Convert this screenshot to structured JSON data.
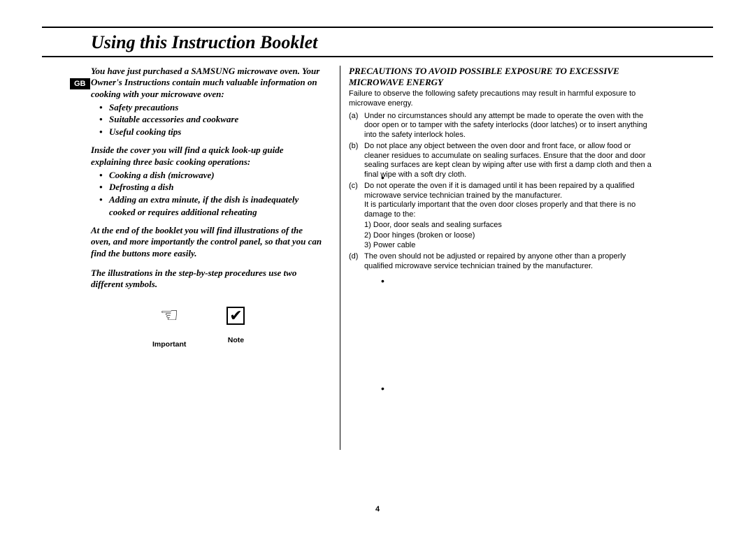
{
  "page": {
    "title": "Using this Instruction Booklet",
    "badge": "GB",
    "page_number": "4"
  },
  "left": {
    "intro": "You have just purchased a SAMSUNG microwave oven. Your Owner's Instructions contain much valuable information on cooking with your microwave oven:",
    "bullets1": [
      "Safety precautions",
      "Suitable accessories and cookware",
      "Useful cooking tips"
    ],
    "para2": "Inside the cover you will find a quick look-up guide explaining three basic cooking operations:",
    "bullets2": [
      "Cooking a dish (microwave)",
      "Defrosting a dish",
      "Adding an extra minute, if the dish is inadequately cooked or requires additional reheating"
    ],
    "para3": "At the end of the booklet you will find illustrations of the oven, and more importantly the control panel, so that you can find the buttons more easily.",
    "para4": "The illustrations in the step-by-step procedures use two different symbols.",
    "symbols": {
      "important_label": "Important",
      "note_label": "Note"
    }
  },
  "right": {
    "heading": "PRECAUTIONS TO AVOID POSSIBLE EXPOSURE TO EXCESSIVE MICROWAVE ENERGY",
    "sub": "Failure to observe the following safety precautions may result in harmful exposure to microwave energy.",
    "items": [
      {
        "letter": "(a)",
        "text": "Under no circumstances should any attempt be made to operate the oven with the door open or to tamper with the safety interlocks (door latches) or to insert anything into the safety interlock holes."
      },
      {
        "letter": "(b)",
        "text": "Do not place any object between the oven door and front face, or allow food or cleaner residues to accumulate on sealing surfaces. Ensure that the door and door sealing surfaces are kept clean by wiping after use with first a damp cloth and then a final wipe with a soft dry cloth."
      },
      {
        "letter": "(c)",
        "text": "Do not operate the oven if it is damaged until it has been repaired by a qualified microwave service technician trained by the manufacturer.",
        "extra": "It is particularly important that the oven door closes properly and that there is no damage to the:",
        "subs": [
          "1) Door, door seals and sealing surfaces",
          "2) Door hinges (broken or loose)",
          "3) Power cable"
        ]
      },
      {
        "letter": "(d)",
        "text": "The oven should not be adjusted or repaired by anyone other than a properly qualified microwave service technician trained by the manufacturer."
      }
    ],
    "dot_positions": [
      246,
      394,
      548
    ]
  }
}
